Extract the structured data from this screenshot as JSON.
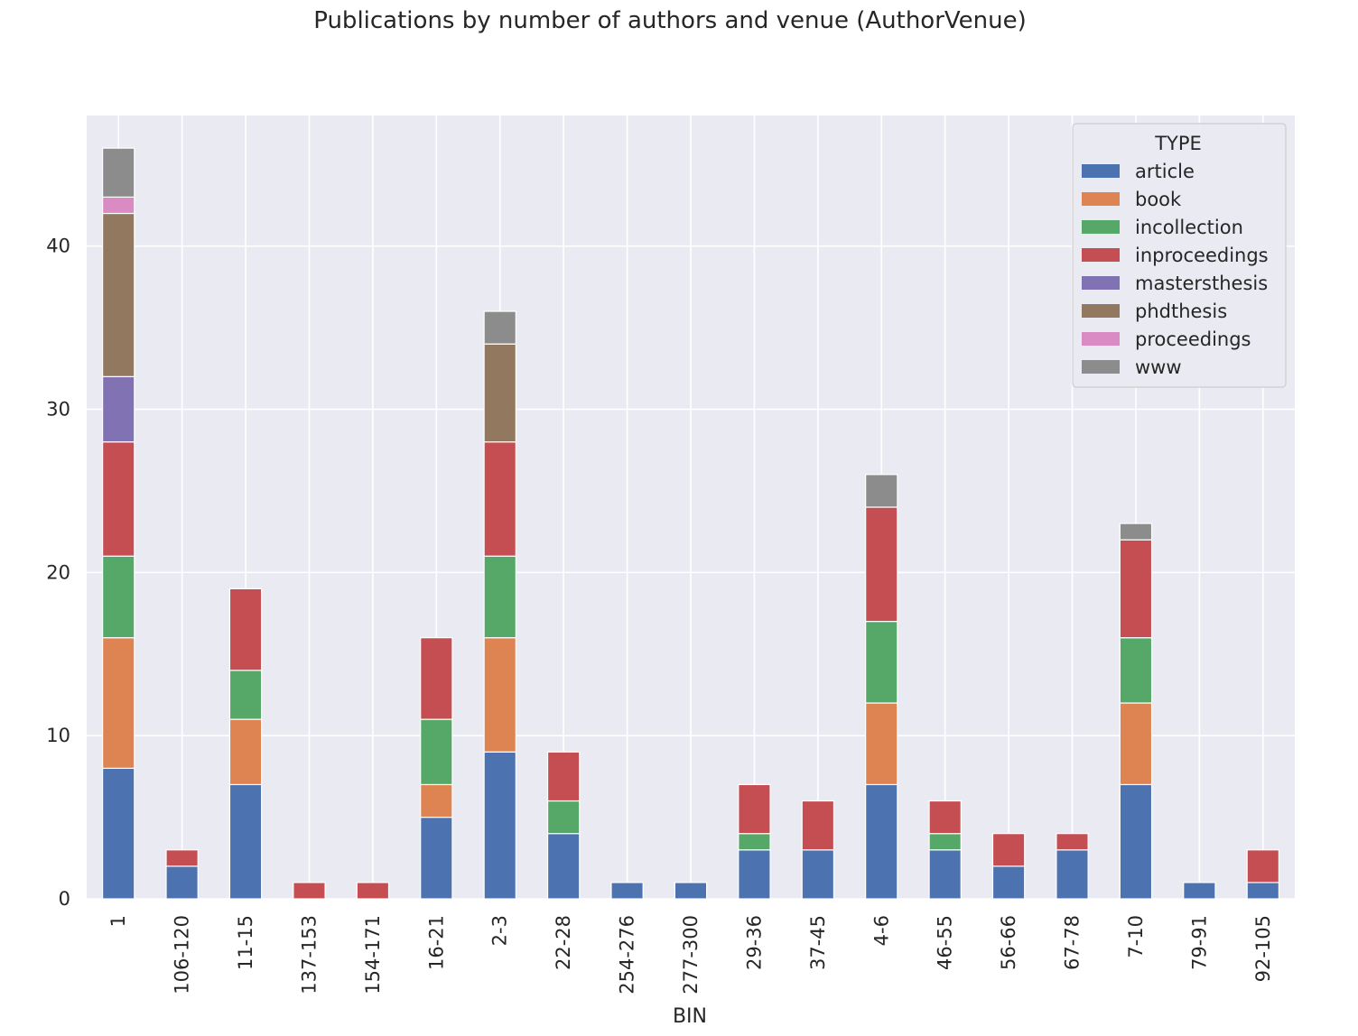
{
  "chart_data": {
    "type": "bar",
    "stacked": true,
    "title": "Publications by number of authors and venue (AuthorVenue)",
    "xlabel": "BIN",
    "ylabel": "",
    "ylim": [
      0,
      48
    ],
    "yticks": [
      0,
      10,
      20,
      30,
      40
    ],
    "grid": true,
    "legend": {
      "title": "TYPE",
      "placement": "top-right"
    },
    "categories": [
      "1",
      "106-120",
      "11-15",
      "137-153",
      "154-171",
      "16-21",
      "2-3",
      "22-28",
      "254-276",
      "277-300",
      "29-36",
      "37-45",
      "4-6",
      "46-55",
      "56-66",
      "67-78",
      "7-10",
      "79-91",
      "92-105"
    ],
    "series": [
      {
        "name": "article",
        "color": "#4c72b0",
        "values": [
          8,
          2,
          7,
          0,
          0,
          5,
          9,
          4,
          1,
          1,
          3,
          3,
          7,
          3,
          2,
          3,
          7,
          1,
          1
        ]
      },
      {
        "name": "book",
        "color": "#dd8452",
        "values": [
          8,
          0,
          4,
          0,
          0,
          2,
          7,
          0,
          0,
          0,
          0,
          0,
          5,
          0,
          0,
          0,
          5,
          0,
          0
        ]
      },
      {
        "name": "incollection",
        "color": "#55a868",
        "values": [
          5,
          0,
          3,
          0,
          0,
          4,
          5,
          2,
          0,
          0,
          1,
          0,
          5,
          1,
          0,
          0,
          4,
          0,
          0
        ]
      },
      {
        "name": "inproceedings",
        "color": "#c44e52",
        "values": [
          7,
          1,
          5,
          1,
          1,
          5,
          7,
          3,
          0,
          0,
          3,
          3,
          7,
          2,
          2,
          1,
          6,
          0,
          2
        ]
      },
      {
        "name": "mastersthesis",
        "color": "#8172b3",
        "values": [
          4,
          0,
          0,
          0,
          0,
          0,
          0,
          0,
          0,
          0,
          0,
          0,
          0,
          0,
          0,
          0,
          0,
          0,
          0
        ]
      },
      {
        "name": "phdthesis",
        "color": "#937860",
        "values": [
          10,
          0,
          0,
          0,
          0,
          0,
          6,
          0,
          0,
          0,
          0,
          0,
          0,
          0,
          0,
          0,
          0,
          0,
          0
        ]
      },
      {
        "name": "proceedings",
        "color": "#da8bc3",
        "values": [
          1,
          0,
          0,
          0,
          0,
          0,
          0,
          0,
          0,
          0,
          0,
          0,
          0,
          0,
          0,
          0,
          0,
          0,
          0
        ]
      },
      {
        "name": "www",
        "color": "#8c8c8c",
        "values": [
          3,
          0,
          0,
          0,
          0,
          0,
          2,
          0,
          0,
          0,
          0,
          0,
          2,
          0,
          0,
          0,
          1,
          0,
          0
        ]
      }
    ]
  }
}
